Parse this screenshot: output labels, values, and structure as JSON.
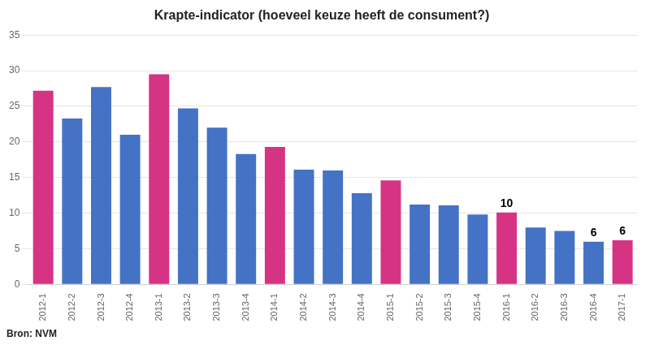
{
  "chart_data": {
    "type": "bar",
    "title": "Krapte-indicator (hoeveel keuze heeft de consument?)",
    "source": "Bron: NVM",
    "categories": [
      "2012-1",
      "2012-2",
      "2012-3",
      "2012-4",
      "2013-1",
      "2013-2",
      "2013-3",
      "2013-4",
      "2014-1",
      "2014-2",
      "2014-3",
      "2014-4",
      "2015-1",
      "2015-2",
      "2015-3",
      "2015-4",
      "2016-1",
      "2016-2",
      "2016-3",
      "2016-4",
      "2017-1"
    ],
    "values": [
      27.2,
      23.3,
      27.7,
      21.0,
      29.5,
      24.7,
      22.0,
      18.3,
      19.3,
      16.1,
      16.0,
      12.8,
      14.6,
      11.2,
      11.1,
      9.8,
      10.1,
      8.0,
      7.5,
      6.0,
      6.2
    ],
    "colors": [
      "#d63384",
      "#4472c4",
      "#4472c4",
      "#4472c4",
      "#d63384",
      "#4472c4",
      "#4472c4",
      "#4472c4",
      "#d63384",
      "#4472c4",
      "#4472c4",
      "#4472c4",
      "#d63384",
      "#4472c4",
      "#4472c4",
      "#4472c4",
      "#d63384",
      "#4472c4",
      "#4472c4",
      "#4472c4",
      "#d63384"
    ],
    "annotations": [
      {
        "category": "2016-1",
        "text": "10"
      },
      {
        "category": "2016-4",
        "text": "6"
      },
      {
        "category": "2017-1",
        "text": "6"
      }
    ],
    "ylim": [
      0,
      35
    ],
    "yticks": [
      0,
      5,
      10,
      15,
      20,
      25,
      30,
      35
    ],
    "grid": true
  }
}
